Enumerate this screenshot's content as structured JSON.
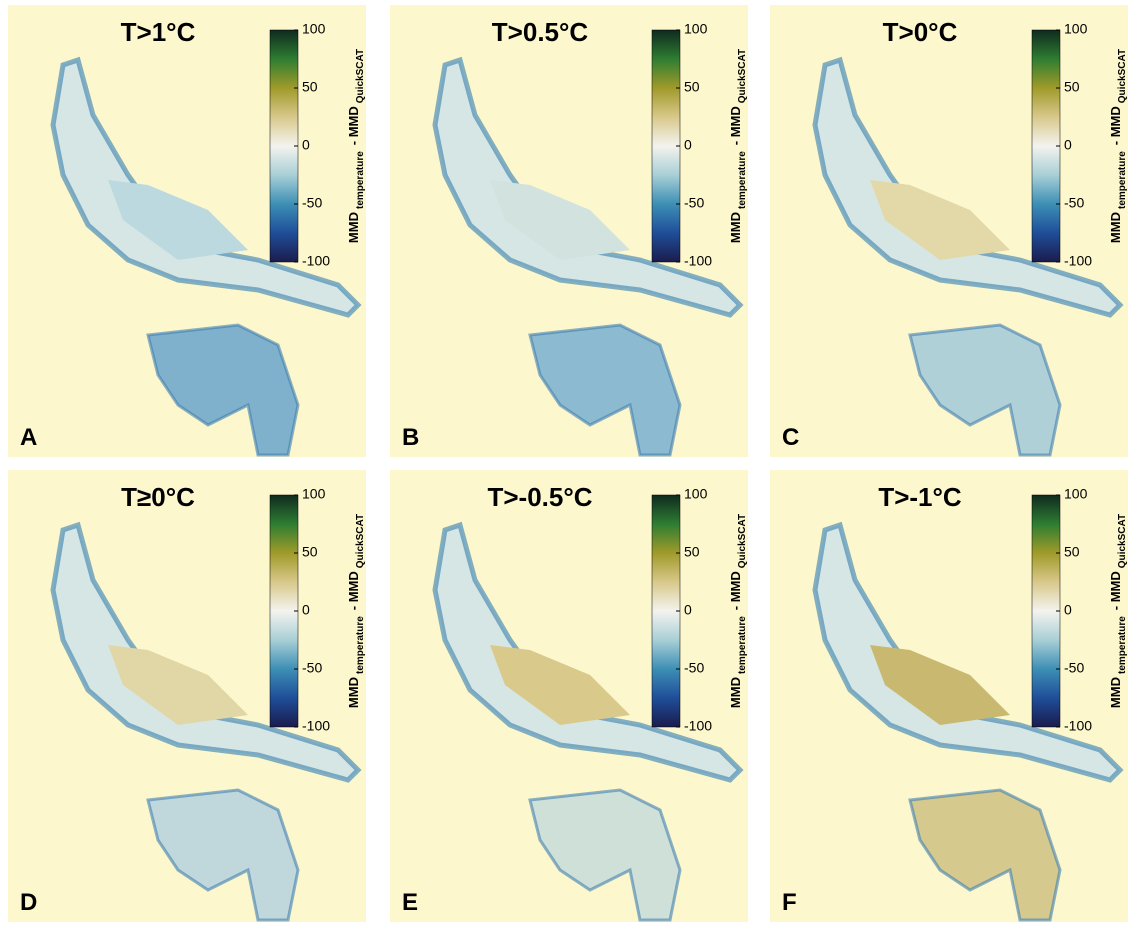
{
  "panels": [
    {
      "title": "T>1°C",
      "label": "A"
    },
    {
      "title": "T>0.5°C",
      "label": "B"
    },
    {
      "title": "T>0°C",
      "label": "C"
    },
    {
      "title": "T≥0°C",
      "label": "D"
    },
    {
      "title": "T>-0.5°C",
      "label": "E"
    },
    {
      "title": "T>-1°C",
      "label": "F"
    }
  ],
  "colorbar": {
    "lim": [
      -100,
      100
    ],
    "ticks": [
      -100,
      -50,
      0,
      50,
      100
    ],
    "label": {
      "main1": "MMD",
      "sub1": "temperature",
      "main2": "- MMD",
      "sub2": "QuickSCAT"
    }
  }
}
